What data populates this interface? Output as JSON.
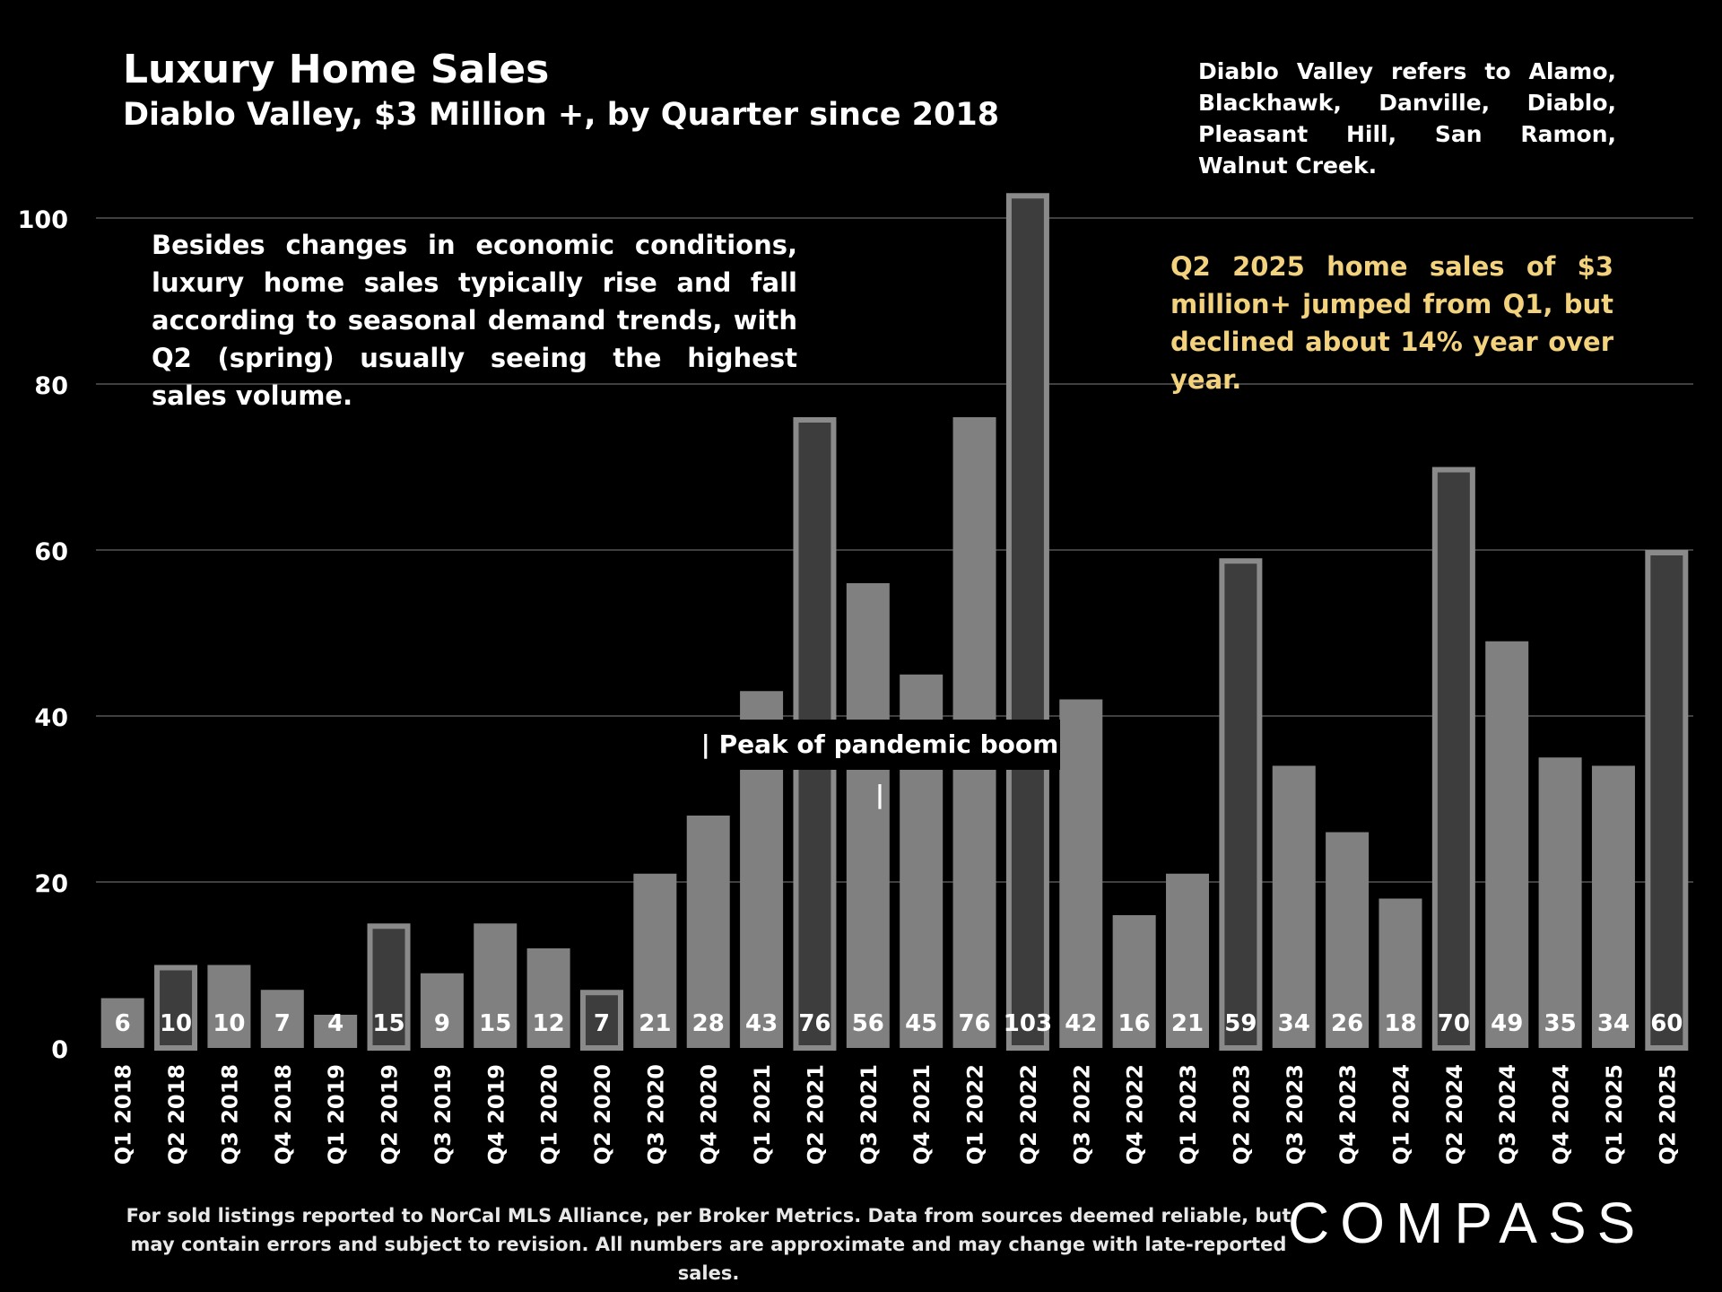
{
  "chart_data": {
    "type": "bar",
    "title": "Luxury Home Sales",
    "subtitle": "Diablo Valley, $3 Million +, by Quarter since 2018",
    "categories": [
      "Q1 2018",
      "Q2 2018",
      "Q3 2018",
      "Q4 2018",
      "Q1 2019",
      "Q2 2019",
      "Q3 2019",
      "Q4 2019",
      "Q1 2020",
      "Q2 2020",
      "Q3 2020",
      "Q4 2020",
      "Q1 2021",
      "Q2 2021",
      "Q3 2021",
      "Q4 2021",
      "Q1 2022",
      "Q2 2022",
      "Q3 2022",
      "Q4 2022",
      "Q1 2023",
      "Q2 2023",
      "Q3 2023",
      "Q4 2023",
      "Q1 2024",
      "Q2 2024",
      "Q3 2024",
      "Q4 2024",
      "Q1 2025",
      "Q2 2025"
    ],
    "values": [
      6,
      10,
      10,
      7,
      4,
      15,
      9,
      15,
      12,
      7,
      21,
      28,
      43,
      76,
      56,
      45,
      76,
      103,
      42,
      16,
      21,
      59,
      34,
      26,
      18,
      70,
      49,
      35,
      34,
      60
    ],
    "value_labels": [
      "6",
      "10",
      "10",
      "7",
      "4",
      "15",
      "9",
      "15",
      "12",
      "7",
      "21",
      "28",
      "43",
      "76",
      "56",
      "45",
      "76",
      "103",
      "42",
      "16",
      "21",
      "59",
      "34",
      "26",
      "18",
      "70",
      "49",
      "35",
      "34",
      "60"
    ],
    "highlighted_quarter": "Q2",
    "yticks": [
      "0",
      "20",
      "40",
      "60",
      "80",
      "100"
    ],
    "ylim": [
      0,
      108
    ],
    "grid": true,
    "colors": {
      "bar": "#808080",
      "bar_highlight": "#3d3d3d",
      "bar_highlight_border": "#8a8a8a",
      "grid": "#555555",
      "annotation_highlight": "#f3d27e"
    }
  },
  "note": "Diablo Valley refers to Alamo, Blackhawk, Danville, Diablo, Pleasant Hill, San Ramon, Walnut Creek.",
  "annotation_left": "Besides changes in economic conditions, luxury home sales typically rise and fall according to seasonal demand trends, with Q2 (spring) usually seeing the highest sales volume.",
  "annotation_right": "Q2 2025 home sales of $3 million+ jumped from Q1, but declined about 14% year over year.",
  "peak_label": "| Peak of pandemic boom |",
  "footer": "For sold listings reported to NorCal MLS Alliance, per Broker Metrics. Data from sources deemed reliable, but may contain errors and subject to revision. All numbers are approximate and may change with late-reported sales.",
  "logo": "COMPASS"
}
